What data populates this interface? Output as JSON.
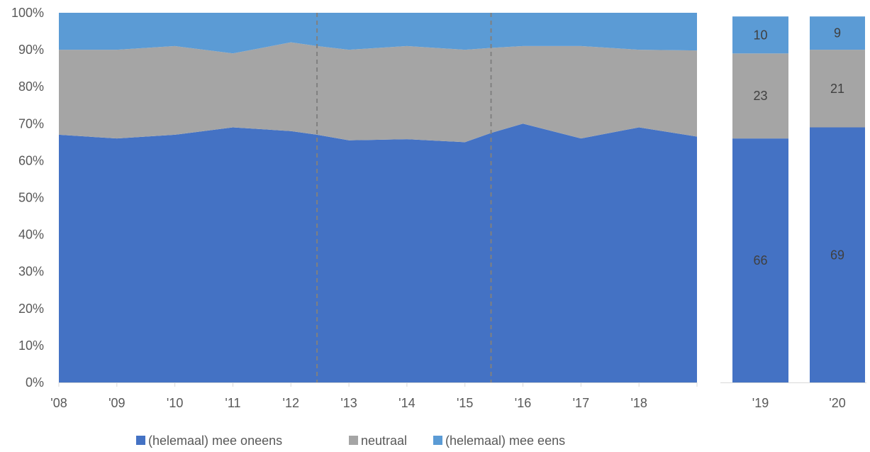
{
  "chart_data": {
    "type": "area",
    "stacked": true,
    "percent": true,
    "y_ticks": [
      "0%",
      "10%",
      "20%",
      "30%",
      "40%",
      "50%",
      "60%",
      "70%",
      "80%",
      "90%",
      "100%"
    ],
    "ylim": [
      0,
      100
    ],
    "grid": false,
    "legend_position": "bottom",
    "area_panel": {
      "x_labels": [
        "'08",
        "'09",
        "'10",
        "'11",
        "'12",
        "'13",
        "'14",
        "'15",
        "'16",
        "'17",
        "'18"
      ],
      "x": [
        0,
        1,
        2,
        3,
        4,
        4.45,
        5,
        6,
        7,
        7.45,
        8,
        9,
        10,
        11
      ],
      "series": [
        {
          "name": "(helemaal) mee oneens",
          "color": "#4472C4",
          "values": [
            67,
            66,
            67,
            69,
            68,
            67,
            65.5,
            65.8,
            65,
            67.5,
            70,
            66,
            69,
            66.5
          ]
        },
        {
          "name": "neutraal",
          "color": "#A5A5A5",
          "values": [
            23,
            24,
            24,
            20,
            24,
            24,
            24.5,
            25.2,
            25,
            23,
            21,
            25,
            21,
            23.3
          ]
        },
        {
          "name": "(helemaal) mee eens",
          "color": "#5B9BD5",
          "values": [
            10,
            10,
            9,
            11,
            8,
            9,
            10,
            9,
            10,
            9.5,
            9,
            9,
            10,
            10.2
          ]
        }
      ],
      "breaks_x": [
        4.45,
        7.45
      ]
    },
    "bar_panels": [
      {
        "label": "'19",
        "values": [
          66,
          23,
          10
        ],
        "data_labels": [
          "66",
          "23",
          "10"
        ]
      },
      {
        "label": "'20",
        "values": [
          69,
          21,
          9
        ],
        "data_labels": [
          "69",
          "21",
          "9"
        ]
      }
    ]
  }
}
